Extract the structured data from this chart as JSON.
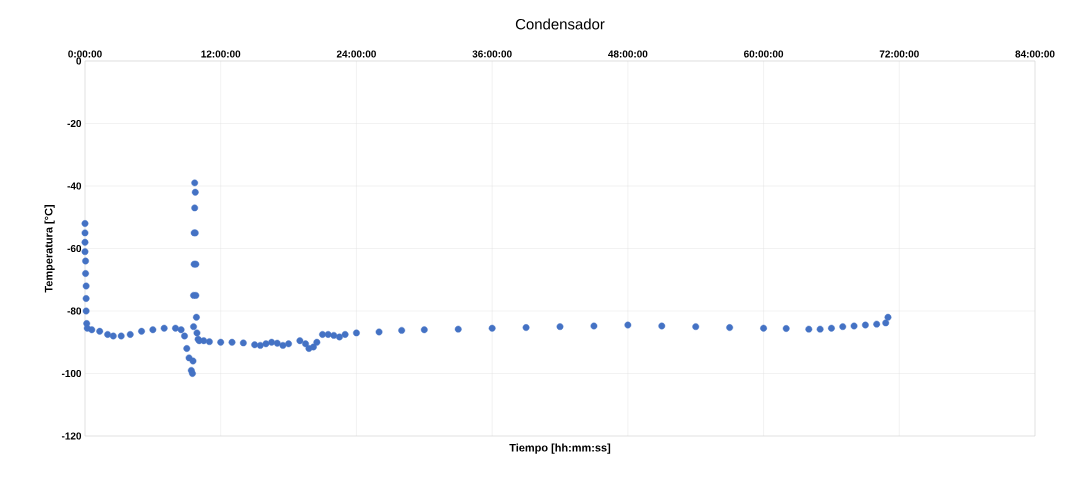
{
  "chart_data": {
    "type": "scatter",
    "title": "Condensador",
    "xlabel": "Tiempo [hh:mm:ss]",
    "ylabel": "Temperatura [°C]",
    "xlim": [
      0,
      84
    ],
    "ylim": [
      -120,
      0
    ],
    "xticks": [
      {
        "value": 0,
        "label": "0:00:00"
      },
      {
        "value": 12,
        "label": "12:00:00"
      },
      {
        "value": 24,
        "label": "24:00:00"
      },
      {
        "value": 36,
        "label": "36:00:00"
      },
      {
        "value": 48,
        "label": "48:00:00"
      },
      {
        "value": 60,
        "label": "60:00:00"
      },
      {
        "value": 72,
        "label": "72:00:00"
      },
      {
        "value": 84,
        "label": "84:00:00"
      }
    ],
    "yticks": [
      -120,
      -100,
      -80,
      -60,
      -40,
      -20,
      0
    ],
    "grid": true,
    "series": [
      {
        "color": "#4472c4",
        "x": [
          0,
          0,
          0,
          0,
          0.05,
          0.05,
          0.1,
          0.1,
          0.1,
          0.15,
          0.2,
          0.6,
          1.3,
          2.0,
          2.5,
          3.2,
          4.0,
          5.0,
          6.0,
          7.0,
          8.0,
          8.5,
          8.8,
          9.0,
          9.2,
          9.4,
          9.5,
          9.55,
          9.6,
          9.6,
          9.65,
          9.65,
          9.7,
          9.7,
          9.75,
          9.75,
          9.8,
          9.8,
          9.85,
          9.9,
          10.0,
          10.1,
          10.5,
          11.0,
          12.0,
          13.0,
          14.0,
          15.0,
          15.5,
          16.0,
          16.5,
          17.0,
          17.5,
          18.0,
          19.0,
          19.5,
          19.8,
          20.2,
          20.5,
          21.0,
          21.5,
          22.0,
          22.5,
          23.0,
          24.0,
          26.0,
          28.0,
          30.0,
          33.0,
          36.0,
          39.0,
          42.0,
          45.0,
          48.0,
          51.0,
          54.0,
          57.0,
          60.0,
          62.0,
          64.0,
          65.0,
          66.0,
          67.0,
          68.0,
          69.0,
          70.0,
          70.8,
          71.0
        ],
        "values": [
          -52,
          -55,
          -58,
          -61,
          -64,
          -68,
          -72,
          -76,
          -80,
          -84,
          -85.5,
          -86,
          -86.5,
          -87.5,
          -88,
          -88,
          -87.5,
          -86.5,
          -86,
          -85.5,
          -85.5,
          -86,
          -88,
          -92,
          -95,
          -99,
          -100,
          -96,
          -85,
          -75,
          -65,
          -55,
          -47,
          -39,
          -42,
          -55,
          -65,
          -75,
          -82,
          -87,
          -89,
          -89.5,
          -89.5,
          -89.8,
          -90,
          -90,
          -90.2,
          -90.8,
          -91,
          -90.5,
          -90,
          -90.3,
          -91,
          -90.5,
          -89.5,
          -90.5,
          -92,
          -91.5,
          -90,
          -87.5,
          -87.5,
          -87.8,
          -88.3,
          -87.5,
          -87,
          -86.7,
          -86.2,
          -86,
          -85.8,
          -85.5,
          -85.3,
          -85,
          -84.8,
          -84.5,
          -84.8,
          -85,
          -85.3,
          -85.5,
          -85.6,
          -85.8,
          -85.8,
          -85.5,
          -85,
          -84.8,
          -84.5,
          -84.2,
          -83.8,
          -82
        ]
      }
    ]
  }
}
